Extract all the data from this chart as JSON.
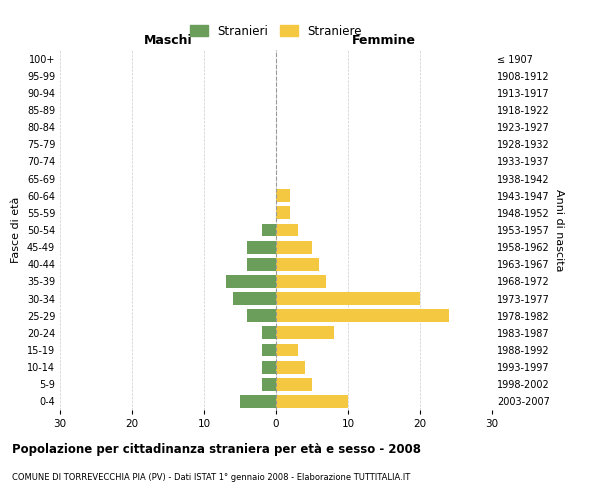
{
  "age_groups": [
    "0-4",
    "5-9",
    "10-14",
    "15-19",
    "20-24",
    "25-29",
    "30-34",
    "35-39",
    "40-44",
    "45-49",
    "50-54",
    "55-59",
    "60-64",
    "65-69",
    "70-74",
    "75-79",
    "80-84",
    "85-89",
    "90-94",
    "95-99",
    "100+"
  ],
  "birth_years": [
    "2003-2007",
    "1998-2002",
    "1993-1997",
    "1988-1992",
    "1983-1987",
    "1978-1982",
    "1973-1977",
    "1968-1972",
    "1963-1967",
    "1958-1962",
    "1953-1957",
    "1948-1952",
    "1943-1947",
    "1938-1942",
    "1933-1937",
    "1928-1932",
    "1923-1927",
    "1918-1922",
    "1913-1917",
    "1908-1912",
    "≤ 1907"
  ],
  "maschi": [
    5,
    2,
    2,
    2,
    2,
    4,
    6,
    7,
    4,
    4,
    2,
    0,
    0,
    0,
    0,
    0,
    0,
    0,
    0,
    0,
    0
  ],
  "femmine": [
    10,
    5,
    4,
    3,
    8,
    24,
    20,
    7,
    6,
    5,
    3,
    2,
    2,
    0,
    0,
    0,
    0,
    0,
    0,
    0,
    0
  ],
  "color_maschi": "#6a9e5a",
  "color_femmine": "#f5c842",
  "title": "Popolazione per cittadinanza straniera per età e sesso - 2008",
  "subtitle": "COMUNE DI TORREVECCHIA PIA (PV) - Dati ISTAT 1° gennaio 2008 - Elaborazione TUTTITALIA.IT",
  "xlabel_left": "Maschi",
  "xlabel_right": "Femmine",
  "ylabel_left": "Fasce di età",
  "ylabel_right": "Anni di nascita",
  "legend_maschi": "Stranieri",
  "legend_femmine": "Straniere",
  "xlim": 30,
  "background_color": "#ffffff",
  "grid_color": "#cccccc"
}
